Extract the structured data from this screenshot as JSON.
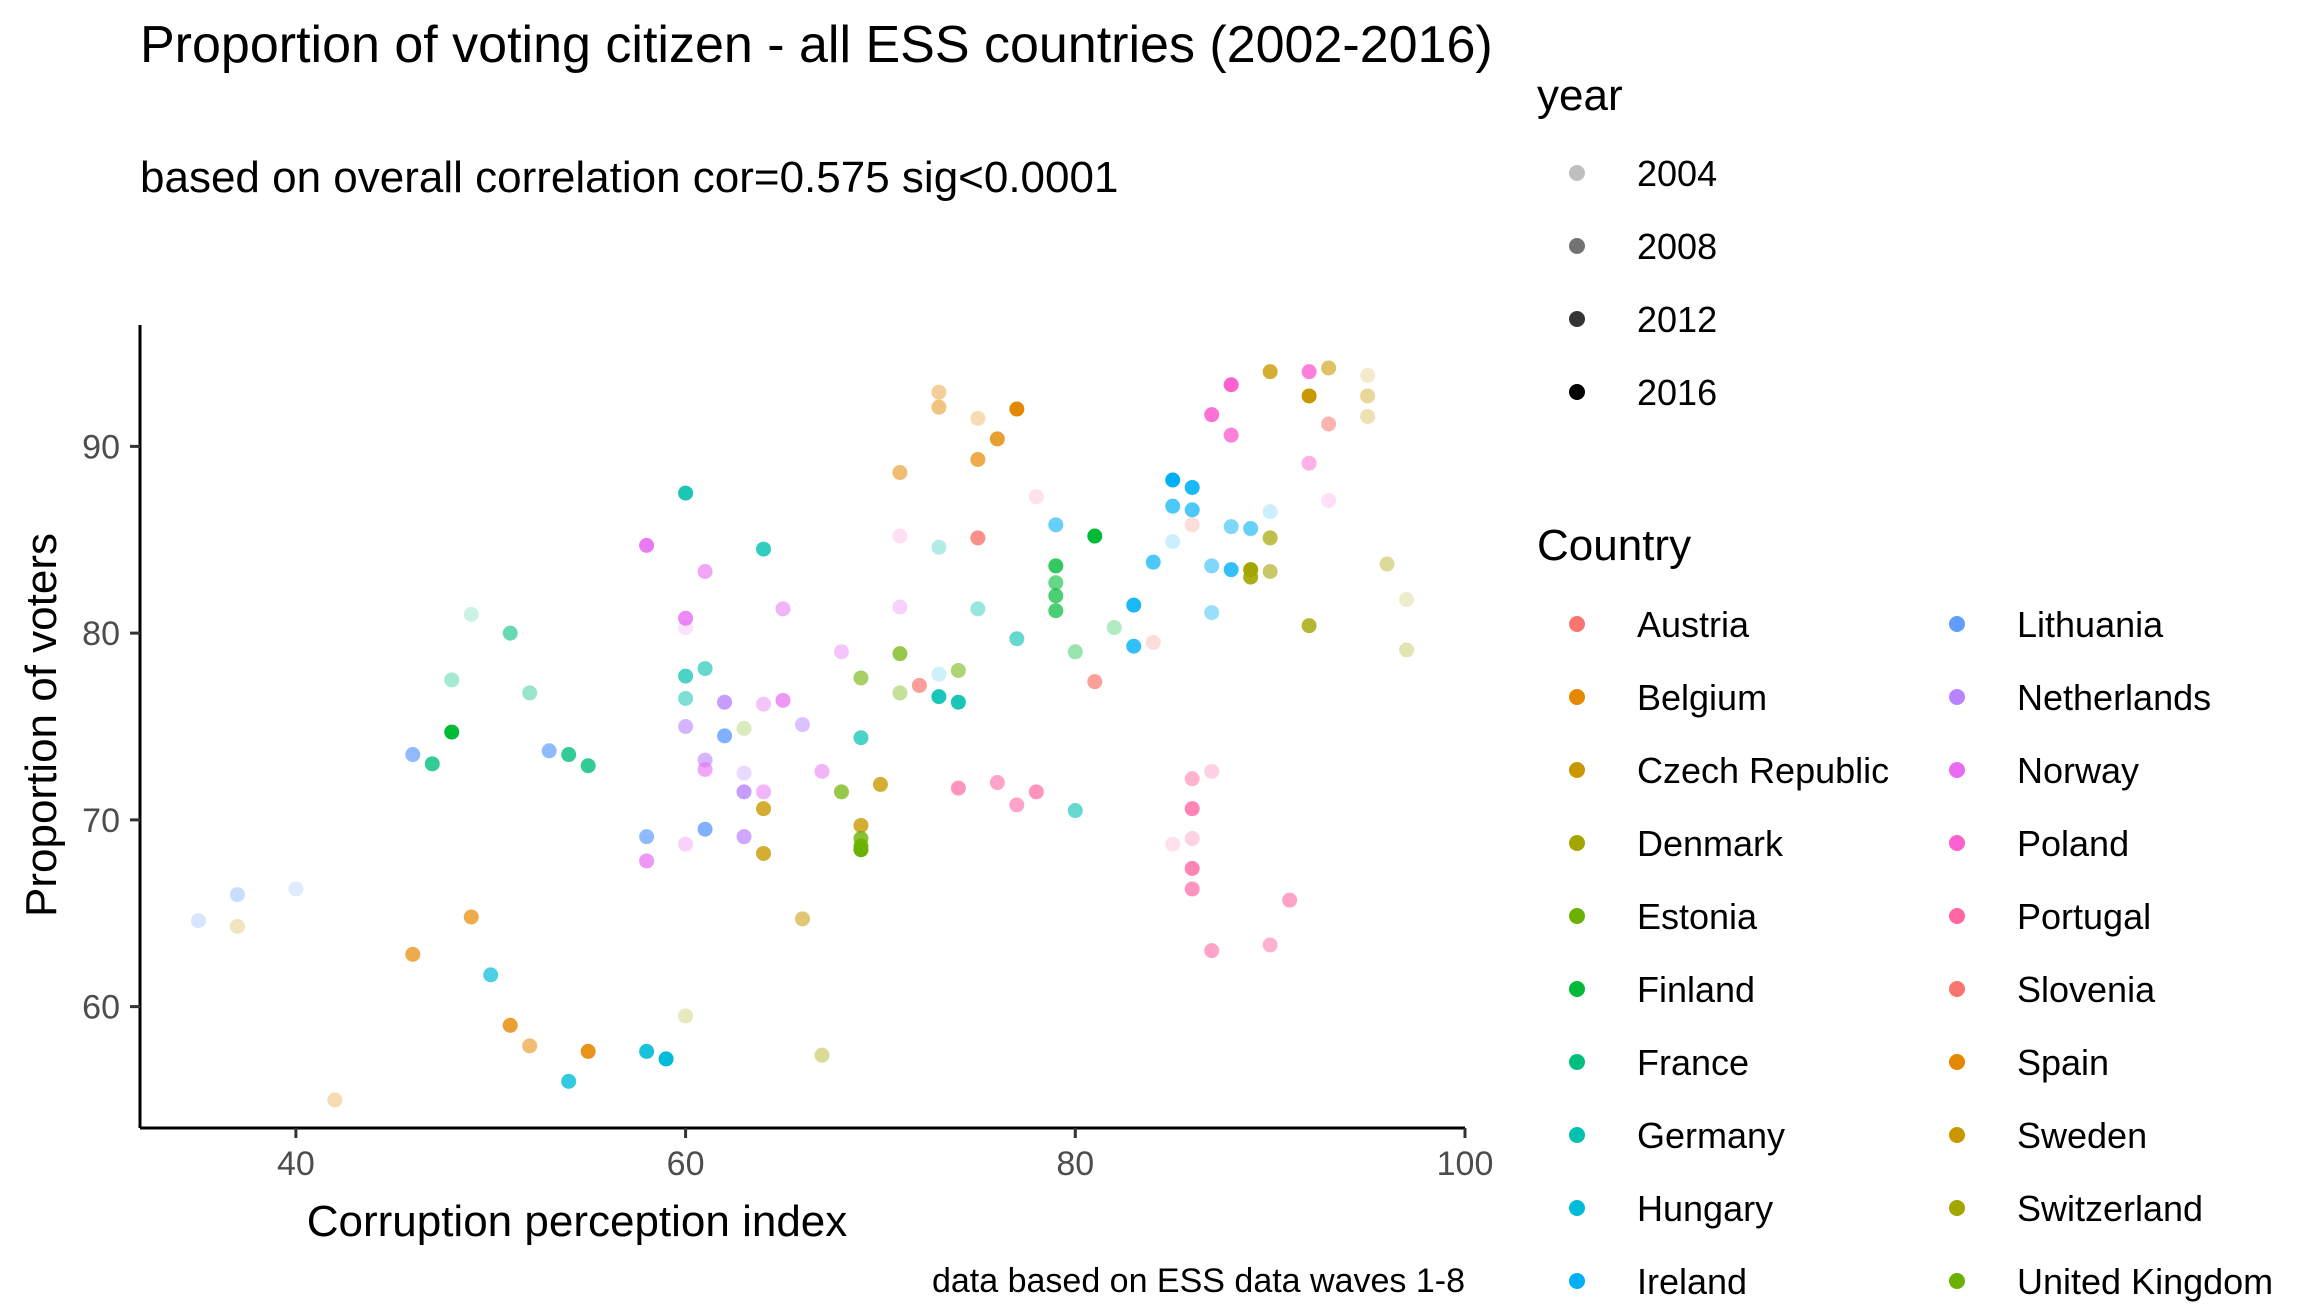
{
  "chart_data": {
    "type": "scatter",
    "title": "Proportion of voting citizen - all ESS countries (2002-2016)",
    "subtitle": "based on overall correlation cor=0.575 sig<0.0001",
    "caption": "data based on ESS data waves 1-8",
    "xlabel": "Corruption perception index",
    "ylabel": "Proportion of voters",
    "xlim": [
      32,
      100
    ],
    "ylim": [
      53.5,
      96.5
    ],
    "x_ticks": [
      "40",
      "60",
      "80",
      "100"
    ],
    "y_ticks": [
      "60",
      "70",
      "80",
      "90"
    ],
    "grid": false,
    "legend_position": "right",
    "year_legend": {
      "title": "year",
      "items": [
        {
          "label": "2004",
          "alpha": 0.25
        },
        {
          "label": "2008",
          "alpha": 0.55
        },
        {
          "label": "2012",
          "alpha": 0.8
        },
        {
          "label": "2016",
          "alpha": 1.0
        }
      ]
    },
    "country_legend": {
      "title": "Country",
      "items": [
        {
          "label": "Austria",
          "color": "#F8766D"
        },
        {
          "label": "Belgium",
          "color": "#E58700"
        },
        {
          "label": "Czech Republic",
          "color": "#C99800"
        },
        {
          "label": "Denmark",
          "color": "#A3A500"
        },
        {
          "label": "Estonia",
          "color": "#6BB100"
        },
        {
          "label": "Finland",
          "color": "#00BA38"
        },
        {
          "label": "France",
          "color": "#00BF7D"
        },
        {
          "label": "Germany",
          "color": "#00C0AF"
        },
        {
          "label": "Hungary",
          "color": "#00BCD8"
        },
        {
          "label": "Ireland",
          "color": "#00B0F6"
        },
        {
          "label": "Lithuania",
          "color": "#619CFF"
        },
        {
          "label": "Netherlands",
          "color": "#B983FF"
        },
        {
          "label": "Norway",
          "color": "#E76BF3"
        },
        {
          "label": "Poland",
          "color": "#FD61D1"
        },
        {
          "label": "Portugal",
          "color": "#FF67A4"
        },
        {
          "label": "Slovenia",
          "color": "#F8766D"
        },
        {
          "label": "Spain",
          "color": "#E58700"
        },
        {
          "label": "Sweden",
          "color": "#C99800"
        },
        {
          "label": "Switzerland",
          "color": "#A3A500"
        },
        {
          "label": "United Kingdom",
          "color": "#6BB100"
        }
      ]
    },
    "points": [
      {
        "x": 72,
        "y": 77.2,
        "c": "#F8766D",
        "a": 0.7
      },
      {
        "x": 81,
        "y": 77.4,
        "c": "#F8766D",
        "a": 0.7
      },
      {
        "x": 75,
        "y": 85.1,
        "c": "#F8766D",
        "a": 0.8
      },
      {
        "x": 86,
        "y": 85.8,
        "c": "#F8766D",
        "a": 0.25
      },
      {
        "x": 84,
        "y": 79.5,
        "c": "#F8766D",
        "a": 0.25
      },
      {
        "x": 93,
        "y": 91.2,
        "c": "#F8766D",
        "a": 0.55
      },
      {
        "x": 73,
        "y": 92.9,
        "c": "#E58700",
        "a": 0.4
      },
      {
        "x": 73,
        "y": 92.1,
        "c": "#E58700",
        "a": 0.5
      },
      {
        "x": 75,
        "y": 91.5,
        "c": "#E58700",
        "a": 0.3
      },
      {
        "x": 77,
        "y": 92.0,
        "c": "#E58700",
        "a": 1.0
      },
      {
        "x": 76,
        "y": 90.4,
        "c": "#E58700",
        "a": 0.8
      },
      {
        "x": 75,
        "y": 89.3,
        "c": "#E58700",
        "a": 0.7
      },
      {
        "x": 71,
        "y": 88.6,
        "c": "#E58700",
        "a": 0.55
      },
      {
        "x": 42,
        "y": 55.0,
        "c": "#E58700",
        "a": 0.3
      },
      {
        "x": 46,
        "y": 62.8,
        "c": "#E58700",
        "a": 0.7
      },
      {
        "x": 49,
        "y": 64.8,
        "c": "#E58700",
        "a": 0.7
      },
      {
        "x": 51,
        "y": 59.0,
        "c": "#E58700",
        "a": 0.8
      },
      {
        "x": 52,
        "y": 57.9,
        "c": "#E58700",
        "a": 0.55
      },
      {
        "x": 55,
        "y": 57.6,
        "c": "#E58700",
        "a": 0.9
      },
      {
        "x": 37,
        "y": 64.3,
        "c": "#C99800",
        "a": 0.25
      },
      {
        "x": 90,
        "y": 94.0,
        "c": "#C99800",
        "a": 0.8
      },
      {
        "x": 93,
        "y": 94.2,
        "c": "#C99800",
        "a": 0.6
      },
      {
        "x": 95,
        "y": 93.8,
        "c": "#C99800",
        "a": 0.2
      },
      {
        "x": 92,
        "y": 92.7,
        "c": "#C99800",
        "a": 1.0
      },
      {
        "x": 95,
        "y": 92.7,
        "c": "#C99800",
        "a": 0.4
      },
      {
        "x": 95,
        "y": 91.6,
        "c": "#C99800",
        "a": 0.3
      },
      {
        "x": 64,
        "y": 70.6,
        "c": "#C99800",
        "a": 0.8
      },
      {
        "x": 64,
        "y": 68.2,
        "c": "#C99800",
        "a": 0.8
      },
      {
        "x": 66,
        "y": 64.7,
        "c": "#C99800",
        "a": 0.55
      },
      {
        "x": 69,
        "y": 69.7,
        "c": "#C99800",
        "a": 0.8
      },
      {
        "x": 70,
        "y": 71.9,
        "c": "#C99800",
        "a": 0.8
      },
      {
        "x": 60,
        "y": 59.5,
        "c": "#A3A500",
        "a": 0.25
      },
      {
        "x": 67,
        "y": 57.4,
        "c": "#A3A500",
        "a": 0.4
      },
      {
        "x": 90,
        "y": 85.1,
        "c": "#A3A500",
        "a": 0.7
      },
      {
        "x": 89,
        "y": 83.4,
        "c": "#A3A500",
        "a": 1.0
      },
      {
        "x": 89,
        "y": 83.0,
        "c": "#A3A500",
        "a": 0.9
      },
      {
        "x": 90,
        "y": 83.3,
        "c": "#A3A500",
        "a": 0.6
      },
      {
        "x": 96,
        "y": 83.7,
        "c": "#A3A500",
        "a": 0.4
      },
      {
        "x": 97,
        "y": 81.8,
        "c": "#A3A500",
        "a": 0.2
      },
      {
        "x": 92,
        "y": 80.4,
        "c": "#A3A500",
        "a": 0.8
      },
      {
        "x": 97,
        "y": 79.1,
        "c": "#A3A500",
        "a": 0.3
      },
      {
        "x": 63,
        "y": 74.9,
        "c": "#6BB100",
        "a": 0.25
      },
      {
        "x": 69,
        "y": 77.6,
        "c": "#6BB100",
        "a": 0.6
      },
      {
        "x": 71,
        "y": 78.9,
        "c": "#6BB100",
        "a": 0.7
      },
      {
        "x": 71,
        "y": 76.8,
        "c": "#6BB100",
        "a": 0.4
      },
      {
        "x": 74,
        "y": 78.0,
        "c": "#6BB100",
        "a": 0.55
      },
      {
        "x": 68,
        "y": 71.5,
        "c": "#6BB100",
        "a": 0.7
      },
      {
        "x": 69,
        "y": 69.0,
        "c": "#6BB100",
        "a": 0.8
      },
      {
        "x": 69,
        "y": 68.4,
        "c": "#6BB100",
        "a": 1.0
      },
      {
        "x": 69,
        "y": 68.6,
        "c": "#6BB100",
        "a": 0.9
      },
      {
        "x": 79,
        "y": 83.6,
        "c": "#00BA38",
        "a": 0.8
      },
      {
        "x": 79,
        "y": 82.7,
        "c": "#00BA38",
        "a": 0.6
      },
      {
        "x": 79,
        "y": 82.0,
        "c": "#00BA38",
        "a": 0.7
      },
      {
        "x": 79,
        "y": 81.2,
        "c": "#00BA38",
        "a": 0.7
      },
      {
        "x": 81,
        "y": 85.2,
        "c": "#00BA38",
        "a": 1.0
      },
      {
        "x": 80,
        "y": 79.0,
        "c": "#00BA38",
        "a": 0.4
      },
      {
        "x": 82,
        "y": 80.3,
        "c": "#00BA38",
        "a": 0.3
      },
      {
        "x": 48,
        "y": 74.7,
        "c": "#00BA38",
        "a": 1.0
      },
      {
        "x": 48,
        "y": 77.5,
        "c": "#00BF7D",
        "a": 0.35
      },
      {
        "x": 47,
        "y": 73.0,
        "c": "#00BF7D",
        "a": 0.8
      },
      {
        "x": 49,
        "y": 81.0,
        "c": "#00BF7D",
        "a": 0.2
      },
      {
        "x": 51,
        "y": 80.0,
        "c": "#00BF7D",
        "a": 0.6
      },
      {
        "x": 52,
        "y": 76.8,
        "c": "#00BF7D",
        "a": 0.4
      },
      {
        "x": 54,
        "y": 73.5,
        "c": "#00BF7D",
        "a": 0.8
      },
      {
        "x": 55,
        "y": 72.9,
        "c": "#00BF7D",
        "a": 0.8
      },
      {
        "x": 60,
        "y": 87.5,
        "c": "#00C0AF",
        "a": 0.9
      },
      {
        "x": 64,
        "y": 84.5,
        "c": "#00C0AF",
        "a": 0.8
      },
      {
        "x": 60,
        "y": 77.7,
        "c": "#00C0AF",
        "a": 0.7
      },
      {
        "x": 61,
        "y": 78.1,
        "c": "#00C0AF",
        "a": 0.6
      },
      {
        "x": 60,
        "y": 76.5,
        "c": "#00C0AF",
        "a": 0.5
      },
      {
        "x": 69,
        "y": 74.4,
        "c": "#00C0AF",
        "a": 0.7
      },
      {
        "x": 73,
        "y": 76.6,
        "c": "#00C0AF",
        "a": 0.9
      },
      {
        "x": 74,
        "y": 76.3,
        "c": "#00C0AF",
        "a": 0.9
      },
      {
        "x": 75,
        "y": 81.3,
        "c": "#00C0AF",
        "a": 0.4
      },
      {
        "x": 77,
        "y": 79.7,
        "c": "#00C0AF",
        "a": 0.6
      },
      {
        "x": 80,
        "y": 70.5,
        "c": "#00C0AF",
        "a": 0.6
      },
      {
        "x": 73,
        "y": 84.6,
        "c": "#00C0AF",
        "a": 0.3
      },
      {
        "x": 50,
        "y": 61.7,
        "c": "#00BCD8",
        "a": 0.7
      },
      {
        "x": 54,
        "y": 56.0,
        "c": "#00BCD8",
        "a": 0.8
      },
      {
        "x": 58,
        "y": 57.6,
        "c": "#00BCD8",
        "a": 0.9
      },
      {
        "x": 59,
        "y": 57.2,
        "c": "#00BCD8",
        "a": 1.0
      },
      {
        "x": 73,
        "y": 77.8,
        "c": "#00BCD8",
        "a": 0.2
      },
      {
        "x": 85,
        "y": 88.2,
        "c": "#00B0F6",
        "a": 1.0
      },
      {
        "x": 86,
        "y": 87.8,
        "c": "#00B0F6",
        "a": 0.9
      },
      {
        "x": 85,
        "y": 86.8,
        "c": "#00B0F6",
        "a": 0.7
      },
      {
        "x": 86,
        "y": 86.6,
        "c": "#00B0F6",
        "a": 0.7
      },
      {
        "x": 79,
        "y": 85.8,
        "c": "#00B0F6",
        "a": 0.6
      },
      {
        "x": 88,
        "y": 85.7,
        "c": "#00B0F6",
        "a": 0.5
      },
      {
        "x": 89,
        "y": 85.6,
        "c": "#00B0F6",
        "a": 0.6
      },
      {
        "x": 90,
        "y": 86.5,
        "c": "#00B0F6",
        "a": 0.2
      },
      {
        "x": 85,
        "y": 84.9,
        "c": "#00B0F6",
        "a": 0.2
      },
      {
        "x": 84,
        "y": 83.8,
        "c": "#00B0F6",
        "a": 0.7
      },
      {
        "x": 87,
        "y": 83.6,
        "c": "#00B0F6",
        "a": 0.5
      },
      {
        "x": 88,
        "y": 83.4,
        "c": "#00B0F6",
        "a": 0.8
      },
      {
        "x": 83,
        "y": 81.5,
        "c": "#00B0F6",
        "a": 0.9
      },
      {
        "x": 83,
        "y": 79.3,
        "c": "#00B0F6",
        "a": 0.8
      },
      {
        "x": 87,
        "y": 81.1,
        "c": "#00B0F6",
        "a": 0.4
      },
      {
        "x": 35,
        "y": 64.6,
        "c": "#619CFF",
        "a": 0.25
      },
      {
        "x": 37,
        "y": 66.0,
        "c": "#619CFF",
        "a": 0.35
      },
      {
        "x": 40,
        "y": 66.3,
        "c": "#619CFF",
        "a": 0.2
      },
      {
        "x": 46,
        "y": 73.5,
        "c": "#619CFF",
        "a": 0.7
      },
      {
        "x": 53,
        "y": 73.7,
        "c": "#619CFF",
        "a": 0.7
      },
      {
        "x": 58,
        "y": 69.1,
        "c": "#619CFF",
        "a": 0.7
      },
      {
        "x": 61,
        "y": 69.5,
        "c": "#619CFF",
        "a": 0.8
      },
      {
        "x": 62,
        "y": 74.5,
        "c": "#619CFF",
        "a": 0.8
      },
      {
        "x": 62,
        "y": 76.3,
        "c": "#B983FF",
        "a": 0.8
      },
      {
        "x": 60,
        "y": 75.0,
        "c": "#B983FF",
        "a": 0.6
      },
      {
        "x": 61,
        "y": 73.2,
        "c": "#B983FF",
        "a": 0.6
      },
      {
        "x": 63,
        "y": 72.5,
        "c": "#B983FF",
        "a": 0.3
      },
      {
        "x": 63,
        "y": 71.5,
        "c": "#B983FF",
        "a": 0.8
      },
      {
        "x": 63,
        "y": 69.1,
        "c": "#B983FF",
        "a": 0.7
      },
      {
        "x": 66,
        "y": 75.1,
        "c": "#B983FF",
        "a": 0.5
      },
      {
        "x": 58,
        "y": 84.7,
        "c": "#E76BF3",
        "a": 0.9
      },
      {
        "x": 61,
        "y": 83.3,
        "c": "#E76BF3",
        "a": 0.6
      },
      {
        "x": 65,
        "y": 81.3,
        "c": "#E76BF3",
        "a": 0.5
      },
      {
        "x": 60,
        "y": 80.8,
        "c": "#E76BF3",
        "a": 0.8
      },
      {
        "x": 60,
        "y": 80.3,
        "c": "#E76BF3",
        "a": 0.2
      },
      {
        "x": 68,
        "y": 79.0,
        "c": "#E76BF3",
        "a": 0.4
      },
      {
        "x": 64,
        "y": 76.2,
        "c": "#E76BF3",
        "a": 0.4
      },
      {
        "x": 65,
        "y": 76.4,
        "c": "#E76BF3",
        "a": 0.7
      },
      {
        "x": 61,
        "y": 72.7,
        "c": "#E76BF3",
        "a": 0.6
      },
      {
        "x": 64,
        "y": 71.5,
        "c": "#E76BF3",
        "a": 0.5
      },
      {
        "x": 67,
        "y": 72.6,
        "c": "#E76BF3",
        "a": 0.5
      },
      {
        "x": 58,
        "y": 67.8,
        "c": "#E76BF3",
        "a": 0.7
      },
      {
        "x": 60,
        "y": 68.7,
        "c": "#E76BF3",
        "a": 0.3
      },
      {
        "x": 71,
        "y": 81.4,
        "c": "#E76BF3",
        "a": 0.3
      },
      {
        "x": 88,
        "y": 93.3,
        "c": "#FD61D1",
        "a": 1.0
      },
      {
        "x": 92,
        "y": 94.0,
        "c": "#FD61D1",
        "a": 0.8
      },
      {
        "x": 87,
        "y": 91.7,
        "c": "#FD61D1",
        "a": 0.9
      },
      {
        "x": 88,
        "y": 90.6,
        "c": "#FD61D1",
        "a": 0.8
      },
      {
        "x": 92,
        "y": 89.1,
        "c": "#FD61D1",
        "a": 0.5
      },
      {
        "x": 93,
        "y": 87.1,
        "c": "#FD61D1",
        "a": 0.2
      },
      {
        "x": 71,
        "y": 85.2,
        "c": "#FD61D1",
        "a": 0.2
      },
      {
        "x": 78,
        "y": 87.3,
        "c": "#FF67A4",
        "a": 0.2
      },
      {
        "x": 74,
        "y": 71.7,
        "c": "#FF67A4",
        "a": 0.7
      },
      {
        "x": 76,
        "y": 72.0,
        "c": "#FF67A4",
        "a": 0.6
      },
      {
        "x": 78,
        "y": 71.5,
        "c": "#FF67A4",
        "a": 0.7
      },
      {
        "x": 77,
        "y": 70.8,
        "c": "#FF67A4",
        "a": 0.6
      },
      {
        "x": 86,
        "y": 72.2,
        "c": "#FF67A4",
        "a": 0.5
      },
      {
        "x": 87,
        "y": 72.6,
        "c": "#FF67A4",
        "a": 0.3
      },
      {
        "x": 86,
        "y": 70.6,
        "c": "#FF67A4",
        "a": 0.8
      },
      {
        "x": 86,
        "y": 69.0,
        "c": "#FF67A4",
        "a": 0.3
      },
      {
        "x": 85,
        "y": 68.7,
        "c": "#FF67A4",
        "a": 0.2
      },
      {
        "x": 86,
        "y": 67.4,
        "c": "#FF67A4",
        "a": 0.8
      },
      {
        "x": 86,
        "y": 66.3,
        "c": "#FF67A4",
        "a": 0.7
      },
      {
        "x": 91,
        "y": 65.7,
        "c": "#FF67A4",
        "a": 0.6
      },
      {
        "x": 90,
        "y": 63.3,
        "c": "#FF67A4",
        "a": 0.5
      },
      {
        "x": 87,
        "y": 63.0,
        "c": "#FF67A4",
        "a": 0.6
      }
    ]
  }
}
